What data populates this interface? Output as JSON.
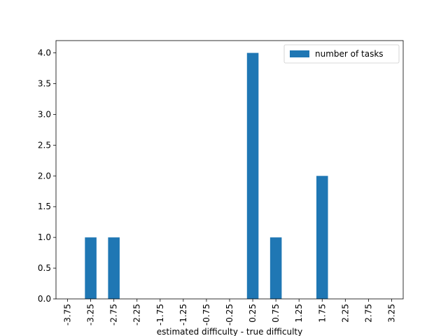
{
  "chart_data": {
    "type": "bar",
    "x_label": "estimated difficulty - true difficulty",
    "categories": [
      "-3.75",
      "-3.25",
      "-2.75",
      "-2.25",
      "-1.75",
      "-1.25",
      "-0.75",
      "-0.25",
      "0.25",
      "0.75",
      "1.25",
      "1.75",
      "2.25",
      "2.75",
      "3.25"
    ],
    "series": [
      {
        "name": "number of tasks",
        "color": "#1f77b4",
        "values": [
          0,
          1,
          1,
          0,
          0,
          0,
          0,
          0,
          4,
          1,
          0,
          2,
          0,
          0,
          0
        ]
      }
    ],
    "ylim": [
      0,
      4.2
    ],
    "yticks": [
      {
        "value": 0,
        "label": "0.0"
      },
      {
        "value": 0.5,
        "label": "0.5"
      },
      {
        "value": 1,
        "label": "1.0"
      },
      {
        "value": 1.5,
        "label": "1.5"
      },
      {
        "value": 2,
        "label": "2.0"
      },
      {
        "value": 2.5,
        "label": "2.5"
      },
      {
        "value": 3,
        "label": "3.0"
      },
      {
        "value": 3.5,
        "label": "3.5"
      },
      {
        "value": 4,
        "label": "4.0"
      }
    ],
    "legend": "upper right"
  }
}
